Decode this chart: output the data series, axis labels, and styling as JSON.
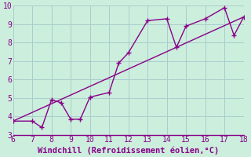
{
  "xlabel": "Windchill (Refroidissement éolien,°C)",
  "xlim": [
    6,
    18
  ],
  "ylim": [
    3,
    10
  ],
  "xticks": [
    6,
    7,
    8,
    9,
    10,
    11,
    12,
    13,
    14,
    15,
    16,
    17,
    18
  ],
  "yticks": [
    3,
    4,
    5,
    6,
    7,
    8,
    9,
    10
  ],
  "line_color": "#880088",
  "bg_color": "#cceedd",
  "grid_color": "#aacccc",
  "zigzag_x": [
    6,
    7,
    7.5,
    8,
    8.5,
    9,
    9.5,
    10,
    11,
    11.5,
    12,
    13,
    14,
    14.5,
    15,
    16,
    17,
    17.5,
    18
  ],
  "zigzag_y": [
    3.75,
    3.75,
    3.4,
    4.9,
    4.75,
    3.85,
    3.85,
    5.05,
    5.3,
    6.9,
    7.45,
    9.2,
    9.3,
    7.75,
    8.9,
    9.3,
    9.9,
    8.4,
    9.4
  ],
  "trend_x": [
    6,
    18
  ],
  "trend_y": [
    3.75,
    9.4
  ],
  "marker_x": [
    6,
    7,
    7.5,
    8,
    8.5,
    9,
    9.5,
    10,
    11,
    11.5,
    12,
    13,
    14,
    14.5,
    15,
    16,
    17,
    17.5,
    18
  ],
  "marker_y": [
    3.75,
    3.75,
    3.4,
    4.9,
    4.75,
    3.85,
    3.85,
    5.05,
    5.3,
    6.9,
    7.45,
    9.2,
    9.3,
    7.75,
    8.9,
    9.3,
    9.9,
    8.4,
    9.4
  ],
  "tick_fontsize": 7,
  "xlabel_fontsize": 7.5
}
